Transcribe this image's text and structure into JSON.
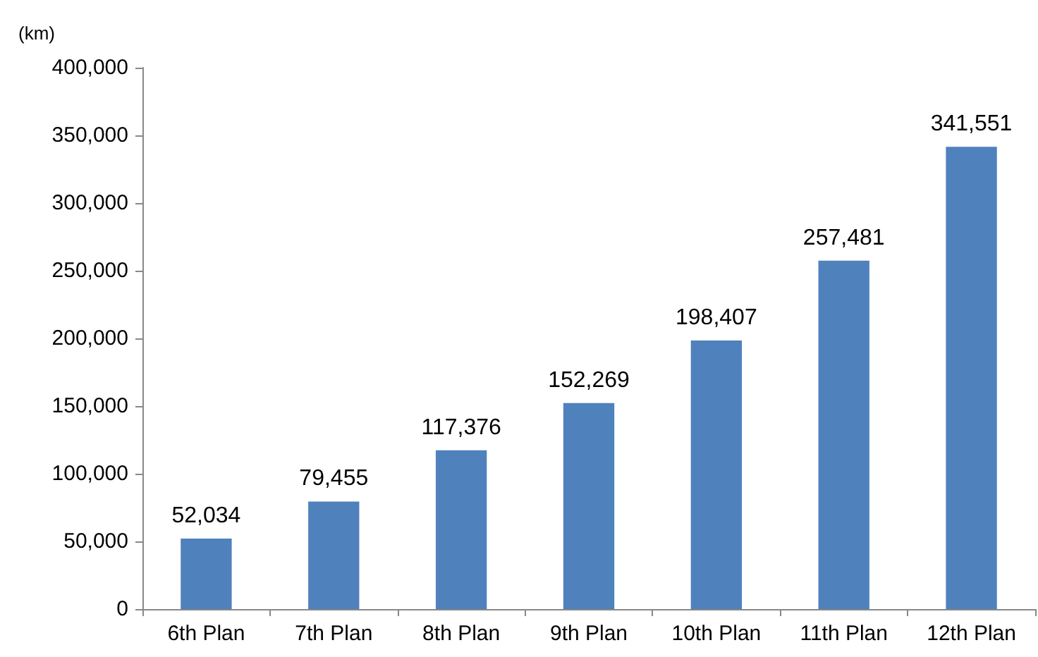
{
  "chart_data": {
    "type": "bar",
    "ylabel": "(km)",
    "categories": [
      "6th Plan",
      "7th Plan",
      "8th Plan",
      "9th Plan",
      "10th Plan",
      "11th Plan",
      "12th Plan"
    ],
    "values": [
      52034,
      79455,
      117376,
      152269,
      198407,
      257481,
      341551
    ],
    "value_labels": [
      "52,034",
      "79,455",
      "117,376",
      "152,269",
      "198,407",
      "257,481",
      "341,551"
    ],
    "color": "#4f81bd",
    "ylim": [
      0,
      400000
    ],
    "yticks": [
      0,
      {
        "value": 50000,
        "label": "50,000"
      },
      {
        "value": 100000,
        "label": "100,000"
      },
      {
        "value": 150000,
        "label": "150,000"
      },
      {
        "value": 200000,
        "label": "200,000"
      },
      {
        "value": 250000,
        "label": "250,000"
      },
      {
        "value": 300000,
        "label": "300,000"
      },
      {
        "value": 350000,
        "label": "350,000"
      },
      {
        "value": 400000,
        "label": "400,000"
      }
    ],
    "grid": false
  }
}
